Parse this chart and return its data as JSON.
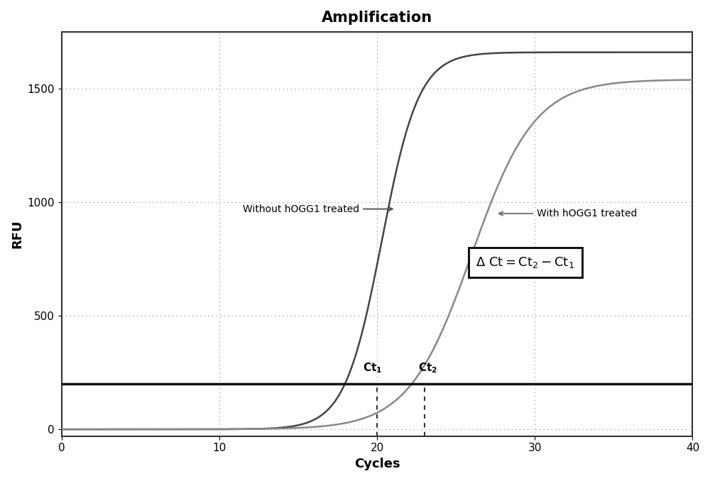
{
  "title": "Amplification",
  "xlabel": "Cycles",
  "ylabel": "RFU",
  "xlim": [
    0,
    40
  ],
  "ylim": [
    -30,
    1750
  ],
  "yticks": [
    0,
    500,
    1000,
    1500
  ],
  "xticks": [
    0,
    10,
    20,
    30,
    40
  ],
  "curve1_color": "#444444",
  "curve2_color": "#888888",
  "threshold_y": 200,
  "threshold_color": "#111111",
  "ct1_x": 20.0,
  "ct2_x": 23.0,
  "label1": "Without hOGG1 treated",
  "label2": "With hOGG1 treated",
  "background_color": "#ffffff",
  "plot_bg_color": "#ffffff",
  "grid_color": "#aaaaaa",
  "title_fontsize": 15,
  "axis_fontsize": 13,
  "tick_fontsize": 11,
  "curve1_x0": 20.3,
  "curve1_k": 0.85,
  "curve1_L": 1660,
  "curve2_x0": 26.0,
  "curve2_k": 0.5,
  "curve2_L": 1540
}
